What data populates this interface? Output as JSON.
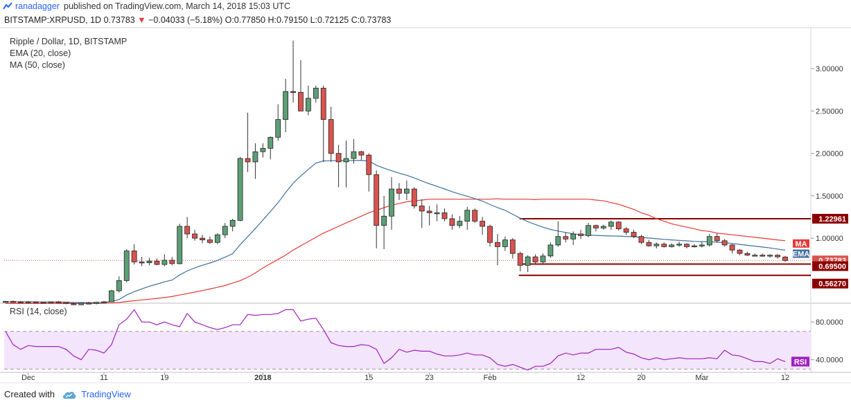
{
  "header": {
    "author": "ranadagger",
    "published_text": "published on TradingView.com, March 14, 2018 15:03 UTC"
  },
  "quote": {
    "symbol": "BITSTAMP:XRPUSD, 1D",
    "last": "0.73783",
    "change": "−0.04033 (−5.18%)",
    "ohlc": "O:0.77850 H:0.79150 L:0.72125 C:0.73783"
  },
  "legend": {
    "title": "Ripple / Dollar, 1D, BITSTAMP",
    "ema": "EMA (20, close)",
    "ma": "MA (50, close)"
  },
  "rsi": {
    "label": "RSI (14, close)",
    "tag": "RSI"
  },
  "footer": {
    "created_with": "Created with",
    "brand": "TradingView"
  },
  "colors": {
    "up": "#5d9e76",
    "down": "#d9534f",
    "ema": "#3f6f9e",
    "ma": "#e53935",
    "level": "#8b0000",
    "rsi": "#a020c0",
    "rsi_fill": "#f3e5fb"
  },
  "chart_data": [
    {
      "type": "candlestick",
      "title": "Ripple / Dollar, 1D, BITSTAMP",
      "ylim": [
        0.25,
        3.45
      ],
      "y_ticks": [
        "3.00000",
        "2.50000",
        "2.00000",
        "1.50000",
        "1.00000"
      ],
      "y_tick_values": [
        3.0,
        2.5,
        2.0,
        1.5,
        1.0
      ],
      "x_ticks": [
        "Dec",
        "11",
        "19",
        "2018",
        "15",
        "23",
        "Feb",
        "12",
        "20",
        "Mar",
        "12"
      ],
      "x_tick_index": [
        3,
        13,
        21,
        34,
        48,
        56,
        64,
        76,
        84,
        92,
        103
      ],
      "candles": [
        [
          0.25,
          0.26,
          0.24,
          0.255
        ],
        [
          0.255,
          0.265,
          0.24,
          0.25
        ],
        [
          0.25,
          0.26,
          0.245,
          0.245
        ],
        [
          0.245,
          0.26,
          0.24,
          0.25
        ],
        [
          0.25,
          0.255,
          0.24,
          0.245
        ],
        [
          0.245,
          0.25,
          0.235,
          0.24
        ],
        [
          0.24,
          0.255,
          0.235,
          0.25
        ],
        [
          0.25,
          0.26,
          0.245,
          0.245
        ],
        [
          0.245,
          0.25,
          0.22,
          0.23
        ],
        [
          0.23,
          0.24,
          0.21,
          0.215
        ],
        [
          0.215,
          0.24,
          0.21,
          0.235
        ],
        [
          0.235,
          0.25,
          0.225,
          0.23
        ],
        [
          0.23,
          0.25,
          0.22,
          0.245
        ],
        [
          0.245,
          0.26,
          0.24,
          0.25
        ],
        [
          0.25,
          0.39,
          0.25,
          0.38
        ],
        [
          0.38,
          0.55,
          0.36,
          0.5
        ],
        [
          0.5,
          0.87,
          0.48,
          0.85
        ],
        [
          0.85,
          0.93,
          0.69,
          0.72
        ],
        [
          0.72,
          0.78,
          0.67,
          0.71
        ],
        [
          0.71,
          0.77,
          0.68,
          0.73
        ],
        [
          0.73,
          0.76,
          0.68,
          0.69
        ],
        [
          0.69,
          0.81,
          0.67,
          0.74
        ],
        [
          0.74,
          0.78,
          0.68,
          0.7
        ],
        [
          0.7,
          1.17,
          0.69,
          1.14
        ],
        [
          1.14,
          1.25,
          1.0,
          1.05
        ],
        [
          1.05,
          1.1,
          0.97,
          1.0
        ],
        [
          1.0,
          1.04,
          0.94,
          0.98
        ],
        [
          0.98,
          1.02,
          0.93,
          0.95
        ],
        [
          0.95,
          1.06,
          0.93,
          1.04
        ],
        [
          1.04,
          1.18,
          1.0,
          1.14
        ],
        [
          1.14,
          1.23,
          1.08,
          1.21
        ],
        [
          1.21,
          1.96,
          1.2,
          1.94
        ],
        [
          1.94,
          2.48,
          1.78,
          1.9
        ],
        [
          1.9,
          2.12,
          1.7,
          2.02
        ],
        [
          2.02,
          2.12,
          1.95,
          2.06
        ],
        [
          2.06,
          2.2,
          1.93,
          2.19
        ],
        [
          2.19,
          2.58,
          2.15,
          2.4
        ],
        [
          2.4,
          2.88,
          2.25,
          2.73
        ],
        [
          2.73,
          3.33,
          2.6,
          2.72
        ],
        [
          2.72,
          3.1,
          2.5,
          2.5
        ],
        [
          2.5,
          2.8,
          2.45,
          2.65
        ],
        [
          2.65,
          2.8,
          2.6,
          2.77
        ],
        [
          2.77,
          2.8,
          1.9,
          2.4
        ],
        [
          2.4,
          2.55,
          1.9,
          2.0
        ],
        [
          2.0,
          2.1,
          1.6,
          1.9
        ],
        [
          1.9,
          2.15,
          1.6,
          1.94
        ],
        [
          1.94,
          2.17,
          1.88,
          2.02
        ],
        [
          2.02,
          2.03,
          1.92,
          1.98
        ],
        [
          1.98,
          2.0,
          1.55,
          1.75
        ],
        [
          1.75,
          1.8,
          0.88,
          1.15
        ],
        [
          1.15,
          1.5,
          0.87,
          1.26
        ],
        [
          1.26,
          1.72,
          1.1,
          1.58
        ],
        [
          1.58,
          1.65,
          1.45,
          1.53
        ],
        [
          1.53,
          1.68,
          1.45,
          1.58
        ],
        [
          1.58,
          1.6,
          1.35,
          1.38
        ],
        [
          1.38,
          1.46,
          1.12,
          1.32
        ],
        [
          1.32,
          1.38,
          1.15,
          1.3
        ],
        [
          1.3,
          1.4,
          1.2,
          1.3
        ],
        [
          1.3,
          1.35,
          1.2,
          1.23
        ],
        [
          1.23,
          1.28,
          1.1,
          1.15
        ],
        [
          1.15,
          1.26,
          1.12,
          1.2
        ],
        [
          1.2,
          1.37,
          1.1,
          1.33
        ],
        [
          1.33,
          1.35,
          1.18,
          1.2
        ],
        [
          1.2,
          1.25,
          1.04,
          1.14
        ],
        [
          1.14,
          1.16,
          0.9,
          0.95
        ],
        [
          0.95,
          1.05,
          0.68,
          0.9
        ],
        [
          0.9,
          1.02,
          0.85,
          0.98
        ],
        [
          0.98,
          1.0,
          0.76,
          0.82
        ],
        [
          0.82,
          0.84,
          0.61,
          0.68
        ],
        [
          0.68,
          0.8,
          0.6,
          0.78
        ],
        [
          0.78,
          0.81,
          0.7,
          0.72
        ],
        [
          0.72,
          0.82,
          0.7,
          0.79
        ],
        [
          0.79,
          0.95,
          0.77,
          0.92
        ],
        [
          0.92,
          1.2,
          0.9,
          1.02
        ],
        [
          1.02,
          1.07,
          0.95,
          0.99
        ],
        [
          0.99,
          1.08,
          0.92,
          1.05
        ],
        [
          1.05,
          1.1,
          0.99,
          1.03
        ],
        [
          1.03,
          1.18,
          1.01,
          1.15
        ],
        [
          1.15,
          1.16,
          1.08,
          1.12
        ],
        [
          1.12,
          1.16,
          1.1,
          1.14
        ],
        [
          1.14,
          1.21,
          1.1,
          1.19
        ],
        [
          1.19,
          1.2,
          1.09,
          1.11
        ],
        [
          1.11,
          1.13,
          1.04,
          1.07
        ],
        [
          1.07,
          1.1,
          1.0,
          1.02
        ],
        [
          1.02,
          1.04,
          0.93,
          0.95
        ],
        [
          0.95,
          0.98,
          0.9,
          0.91
        ],
        [
          0.91,
          0.95,
          0.88,
          0.93
        ],
        [
          0.93,
          0.95,
          0.89,
          0.9
        ],
        [
          0.9,
          0.94,
          0.89,
          0.92
        ],
        [
          0.92,
          0.96,
          0.9,
          0.93
        ],
        [
          0.93,
          0.94,
          0.88,
          0.9
        ],
        [
          0.9,
          0.93,
          0.89,
          0.91
        ],
        [
          0.91,
          0.96,
          0.89,
          0.92
        ],
        [
          0.92,
          1.05,
          0.9,
          1.02
        ],
        [
          1.02,
          1.06,
          0.95,
          0.97
        ],
        [
          0.97,
          0.99,
          0.9,
          0.92
        ],
        [
          0.92,
          0.93,
          0.82,
          0.86
        ],
        [
          0.86,
          0.87,
          0.8,
          0.82
        ],
        [
          0.82,
          0.84,
          0.79,
          0.8
        ],
        [
          0.8,
          0.82,
          0.79,
          0.8
        ],
        [
          0.8,
          0.82,
          0.78,
          0.79
        ],
        [
          0.79,
          0.81,
          0.77,
          0.8
        ],
        [
          0.8,
          0.81,
          0.76,
          0.78
        ],
        [
          0.778,
          0.7915,
          0.7213,
          0.7378
        ]
      ],
      "ema20": [
        0.25,
        0.25,
        0.25,
        0.25,
        0.248,
        0.247,
        0.247,
        0.246,
        0.245,
        0.242,
        0.241,
        0.24,
        0.24,
        0.241,
        0.254,
        0.277,
        0.33,
        0.37,
        0.402,
        0.433,
        0.458,
        0.485,
        0.506,
        0.567,
        0.613,
        0.65,
        0.681,
        0.707,
        0.738,
        0.776,
        0.817,
        0.924,
        1.018,
        1.114,
        1.214,
        1.315,
        1.419,
        1.537,
        1.648,
        1.734,
        1.812,
        1.885,
        1.911,
        1.914,
        1.915,
        1.915,
        1.917,
        1.916,
        1.912,
        1.86,
        1.826,
        1.795,
        1.767,
        1.742,
        1.71,
        1.675,
        1.642,
        1.612,
        1.581,
        1.549,
        1.52,
        1.494,
        1.467,
        1.438,
        1.397,
        1.36,
        1.328,
        1.283,
        1.235,
        1.195,
        1.162,
        1.129,
        1.104,
        1.084,
        1.068,
        1.052,
        1.042,
        1.036,
        1.033,
        1.029,
        1.026,
        1.025,
        1.021,
        1.017,
        1.009,
        1.001,
        0.994,
        0.986,
        0.98,
        0.974,
        0.968,
        0.963,
        0.959,
        0.958,
        0.953,
        0.947,
        0.938,
        0.927,
        0.916,
        0.906,
        0.896,
        0.885,
        0.872,
        0.858
      ],
      "ma50": [
        0.23,
        0.23,
        0.23,
        0.23,
        0.23,
        0.23,
        0.23,
        0.23,
        0.23,
        0.23,
        0.23,
        0.23,
        0.231,
        0.232,
        0.236,
        0.242,
        0.253,
        0.262,
        0.272,
        0.28,
        0.29,
        0.3,
        0.312,
        0.33,
        0.346,
        0.364,
        0.382,
        0.401,
        0.421,
        0.442,
        0.47,
        0.5,
        0.54,
        0.59,
        0.65,
        0.7,
        0.75,
        0.8,
        0.86,
        0.91,
        0.96,
        1.01,
        1.06,
        1.1,
        1.14,
        1.18,
        1.22,
        1.26,
        1.3,
        1.33,
        1.36,
        1.39,
        1.41,
        1.43,
        1.44,
        1.45,
        1.46,
        1.46,
        1.46,
        1.46,
        1.46,
        1.46,
        1.46,
        1.46,
        1.46,
        1.465,
        1.46,
        1.46,
        1.46,
        1.46,
        1.455,
        1.46,
        1.46,
        1.46,
        1.46,
        1.46,
        1.46,
        1.46,
        1.45,
        1.44,
        1.42,
        1.4,
        1.37,
        1.34,
        1.3,
        1.27,
        1.23,
        1.2,
        1.17,
        1.15,
        1.13,
        1.11,
        1.09,
        1.08,
        1.06,
        1.05,
        1.04,
        1.03,
        1.02,
        1.01,
        1.0,
        0.99,
        0.98,
        0.97
      ],
      "levels": [
        {
          "label": "1.22961",
          "value": 1.22961
        },
        {
          "label": "0.69500",
          "value": 0.695
        },
        {
          "label": "0.56270",
          "value": 0.5627
        }
      ],
      "last_price": {
        "label": "0.73783",
        "value": 0.73783
      },
      "series_tags": {
        "ma": "MA",
        "ema": "EMA"
      }
    },
    {
      "type": "line",
      "title": "RSI (14, close)",
      "ylim": [
        28,
        97
      ],
      "y_ticks": [
        "80.0000",
        "40.0000"
      ],
      "y_tick_values": [
        80,
        40
      ],
      "band": [
        30,
        70
      ],
      "values": [
        70,
        56,
        51,
        55,
        54,
        54,
        54,
        54,
        51,
        44,
        40,
        51,
        50,
        47,
        56,
        77,
        83,
        93,
        80,
        80,
        77,
        80,
        77,
        75,
        89,
        80,
        77,
        74,
        72,
        74,
        77,
        77,
        88,
        87,
        88,
        88,
        89,
        93,
        93,
        81,
        83,
        84,
        72,
        58,
        55,
        54,
        54,
        56,
        55,
        51,
        36,
        42,
        51,
        48,
        50,
        49,
        49,
        46,
        44,
        44,
        45,
        47,
        45,
        45,
        42,
        35,
        33,
        35,
        32,
        29,
        33,
        33,
        36,
        44,
        47,
        45,
        47,
        47,
        51,
        51,
        51,
        53,
        48,
        46,
        42,
        40,
        42,
        40,
        41,
        42,
        41,
        41,
        41,
        42,
        41,
        50,
        45,
        44,
        41,
        38,
        38,
        36,
        41,
        38
      ]
    }
  ]
}
